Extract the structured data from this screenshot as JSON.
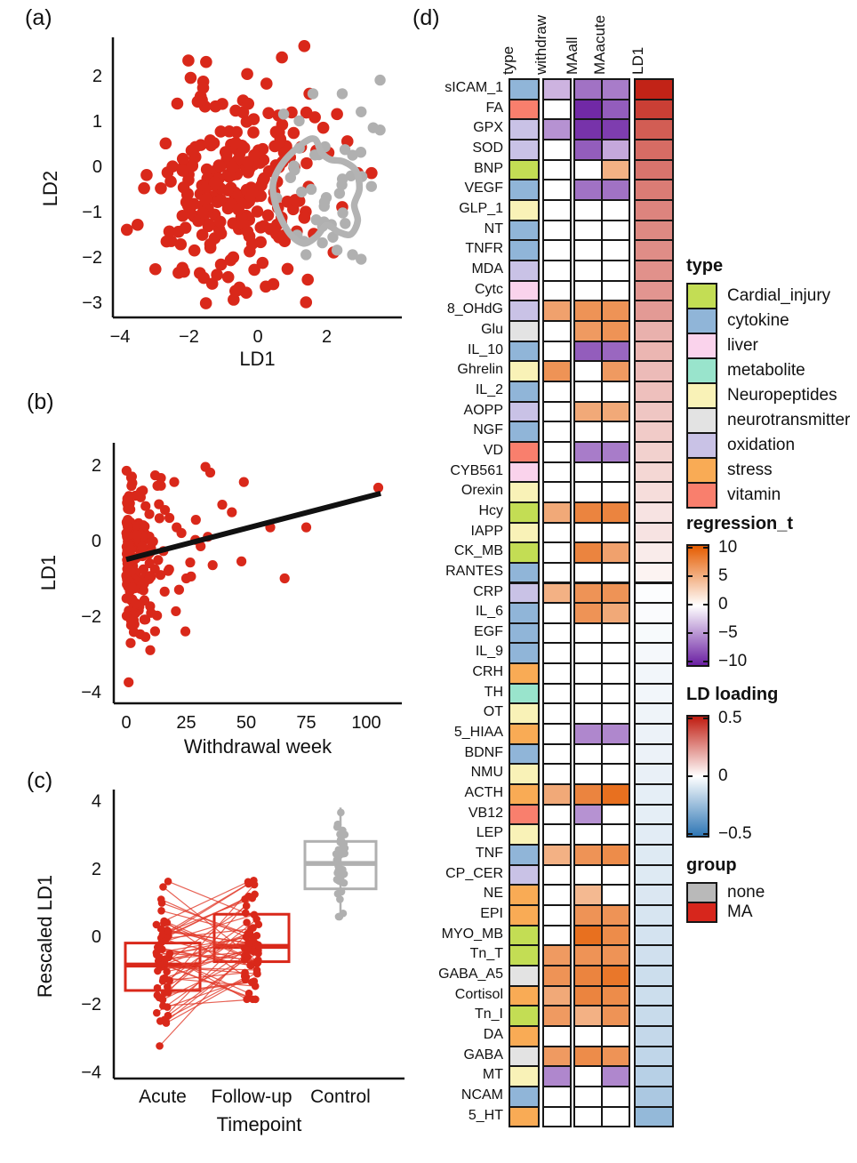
{
  "figure": {
    "panel_labels": {
      "a": "(a)",
      "b": "(b)",
      "c": "(c)",
      "d": "(d)"
    }
  },
  "chart_data": {
    "panel_a": {
      "type": "scatter",
      "xlabel": "LD1",
      "ylabel": "LD2",
      "xticks": [
        -4,
        -2,
        0,
        2
      ],
      "yticks": [
        2,
        1,
        0,
        -1,
        -2,
        -3
      ],
      "xlim": [
        -4.2,
        4.18
      ],
      "ylim": [
        -3.35,
        2.9
      ],
      "series": [
        {
          "name": "MA",
          "color": "#d9281a",
          "cluster": {
            "n": 235,
            "cx": -0.75,
            "cy": -0.4,
            "sx": 1.15,
            "sy": 1.05,
            "xmin": -3.9,
            "xmax": 2.05,
            "ymin": -3.05,
            "ymax": 2.7
          },
          "points": [
            [
              -3.8,
              -1.4
            ],
            [
              1.35,
              2.65
            ],
            [
              0.7,
              2.4
            ],
            [
              -1.5,
              2.3
            ],
            [
              -1.95,
              1.95
            ],
            [
              1.45,
              -2.5
            ],
            [
              1.4,
              -3.0
            ],
            [
              0.45,
              -2.6
            ],
            [
              -0.65,
              -2.75
            ],
            [
              -2.3,
              -2.35
            ],
            [
              2.3,
              1.15
            ],
            [
              2.9,
              -0.15
            ],
            [
              3.3,
              -0.15
            ],
            [
              2.6,
              0.55
            ],
            [
              1.9,
              0.85
            ],
            [
              2.2,
              -1.9
            ],
            [
              1.5,
              1.6
            ],
            [
              2.45,
              -0.9
            ],
            [
              2.05,
              0.3
            ]
          ]
        },
        {
          "name": "none",
          "color": "#b0b0b0",
          "cluster": {
            "n": 30,
            "cx": 2.1,
            "cy": -0.6,
            "sx": 0.7,
            "sy": 0.65,
            "xmin": 0.5,
            "xmax": 3.3,
            "ymin": -1.8,
            "ymax": 0.5
          },
          "points": [
            [
              3.55,
              1.9
            ],
            [
              2.45,
              1.6
            ],
            [
              1.6,
              1.6
            ],
            [
              3.0,
              1.2
            ],
            [
              3.35,
              0.85
            ],
            [
              3.55,
              0.8
            ],
            [
              0.75,
              1.15
            ],
            [
              1.2,
              1.0
            ],
            [
              2.75,
              -1.95
            ],
            [
              3.0,
              -2.05
            ],
            [
              2.3,
              -1.85
            ],
            [
              1.4,
              -1.95
            ],
            [
              0.95,
              -0.25
            ],
            [
              0.55,
              -0.7
            ]
          ]
        }
      ],
      "contour": {
        "color": "#b3b3b3",
        "points": [
          [
            0.45,
            -0.35
          ],
          [
            0.75,
            0.1
          ],
          [
            1.3,
            0.5
          ],
          [
            1.65,
            0.6
          ],
          [
            1.85,
            0.3
          ],
          [
            2.1,
            0.15
          ],
          [
            2.5,
            0.1
          ],
          [
            2.85,
            -0.1
          ],
          [
            2.95,
            -0.5
          ],
          [
            2.8,
            -0.85
          ],
          [
            2.9,
            -1.2
          ],
          [
            2.7,
            -1.5
          ],
          [
            2.35,
            -1.45
          ],
          [
            2.0,
            -1.3
          ],
          [
            1.7,
            -1.55
          ],
          [
            1.35,
            -1.7
          ],
          [
            1.0,
            -1.55
          ],
          [
            0.7,
            -1.2
          ],
          [
            0.5,
            -0.8
          ]
        ]
      }
    },
    "panel_b": {
      "type": "scatter",
      "xlabel": "Withdrawal week",
      "ylabel": "LD1",
      "xticks": [
        0,
        25,
        50,
        75,
        100
      ],
      "yticks": [
        2,
        0,
        -2,
        -4
      ],
      "xlim": [
        0,
        110
      ],
      "ylim": [
        -4.3,
        2.5
      ],
      "series": [
        {
          "name": "MA",
          "color": "#d9281a",
          "cluster": {
            "n": 175,
            "x_exp_scale": 5,
            "xmax": 36,
            "ycenter": -0.55,
            "ysd": 1.1,
            "ymin": -2.75,
            "ymax": 2.15
          },
          "points": [
            [
              1,
              -3.75
            ],
            [
              33,
              1.95
            ],
            [
              35,
              1.8
            ],
            [
              20,
              1.55
            ],
            [
              13,
              1.45
            ],
            [
              49,
              1.55
            ],
            [
              105,
              1.4
            ],
            [
              60,
              0.35
            ],
            [
              75,
              0.35
            ],
            [
              44,
              0.75
            ],
            [
              40,
              0.95
            ],
            [
              48,
              -0.55
            ],
            [
              66,
              -1.0
            ],
            [
              27,
              -0.95
            ],
            [
              31,
              -0.15
            ],
            [
              34,
              0.1
            ],
            [
              36,
              -0.65
            ],
            [
              22,
              -1.3
            ],
            [
              25,
              -1.0
            ],
            [
              16,
              -1.35
            ],
            [
              18,
              0.6
            ],
            [
              21,
              0.35
            ],
            [
              23,
              0.2
            ],
            [
              29,
              0.55
            ],
            [
              10,
              -2.9
            ],
            [
              12,
              -2.4
            ],
            [
              8,
              -2.55
            ]
          ]
        }
      ],
      "fit_line": {
        "color": "#111111",
        "from": [
          0,
          -0.5
        ],
        "to": [
          106,
          1.25
        ]
      }
    },
    "panel_c": {
      "type": "boxplot-paired",
      "xlabel": "Timepoint",
      "ylabel": "Rescaled LD1",
      "categories": [
        "Acute",
        "Follow-up",
        "Control"
      ],
      "yticks": [
        4,
        2,
        0,
        -2,
        -4
      ],
      "ylim": [
        -4.2,
        4.15
      ],
      "boxes": [
        {
          "category": "Acute",
          "color": "#d9281a",
          "min": -3.85,
          "q1": -1.6,
          "median": -0.85,
          "q3": -0.2,
          "max": 1.6
        },
        {
          "category": "Follow-up",
          "color": "#d9281a",
          "min": -1.85,
          "q1": -0.75,
          "median": -0.3,
          "q3": 0.65,
          "max": 1.7
        },
        {
          "category": "Control",
          "color": "#b0b0b0",
          "min": 0.6,
          "q1": 1.4,
          "median": 2.15,
          "q3": 2.8,
          "max": 3.8
        }
      ],
      "paired": {
        "n": 58,
        "acute_center": -0.9,
        "acute_sd": 1.15,
        "follow_sd": 0.82,
        "line_color": "#e23b2b"
      },
      "control": {
        "n": 40,
        "center": 2.15,
        "sd": 0.78
      }
    },
    "panel_d": {
      "type": "heatmap",
      "columns": [
        "type",
        "withdraw",
        "MAall",
        "MAacute",
        "LD1"
      ],
      "row_fields": [
        "name",
        "type",
        "withdraw",
        "MAall",
        "MAacute",
        "LD1"
      ],
      "rows": [
        [
          "sICAM_1",
          "cytokine",
          -3,
          -6,
          -5.5,
          0.48
        ],
        [
          "FA",
          "vitamin",
          0,
          -9.5,
          -7,
          0.4
        ],
        [
          "GPX",
          "oxidation",
          -4.5,
          -9,
          -8.5,
          0.32
        ],
        [
          "SOD",
          "oxidation",
          0,
          -7,
          -3.5,
          0.28
        ],
        [
          "BNP",
          "Cardial_injury",
          0,
          0,
          4,
          0.26
        ],
        [
          "VEGF",
          "cytokine",
          0,
          -6,
          -6,
          0.24
        ],
        [
          "GLP_1",
          "Neuropeptides",
          0,
          0,
          0,
          0.22
        ],
        [
          "NT",
          "cytokine",
          0,
          0,
          0,
          0.21
        ],
        [
          "TNFR",
          "cytokine",
          0,
          0,
          0,
          0.2
        ],
        [
          "MDA",
          "oxidation",
          0,
          0,
          0,
          0.19
        ],
        [
          "Cytc",
          "liver",
          0,
          0,
          0,
          0.18
        ],
        [
          "8_OHdG",
          "oxidation",
          5,
          6,
          6,
          0.17
        ],
        [
          "Glu",
          "neurotransmitter",
          0,
          5.5,
          6,
          0.12
        ],
        [
          "IL_10",
          "cytokine",
          0,
          -7,
          -6.5,
          0.11
        ],
        [
          "Ghrelin",
          "Neuropeptides",
          6,
          0,
          5.5,
          0.1
        ],
        [
          "IL_2",
          "cytokine",
          0,
          0,
          0,
          0.09
        ],
        [
          "AOPP",
          "oxidation",
          0,
          4.5,
          4.5,
          0.08
        ],
        [
          "NGF",
          "cytokine",
          0,
          0,
          0,
          0.07
        ],
        [
          "VD",
          "vitamin",
          0,
          -5.5,
          -5.5,
          0.06
        ],
        [
          "CYB561",
          "liver",
          0,
          0,
          0,
          0.05
        ],
        [
          "Orexin",
          "Neuropeptides",
          0,
          0,
          0,
          0.04
        ],
        [
          "Hcy",
          "Cardial_injury",
          4.5,
          7,
          7,
          0.03
        ],
        [
          "IAPP",
          "Neuropeptides",
          0,
          0,
          0,
          0.03
        ],
        [
          "CK_MB",
          "Cardial_injury",
          0,
          7,
          5,
          0.02
        ],
        [
          "RANTES",
          "cytokine",
          0,
          0,
          0,
          0.01
        ],
        [
          "CRP",
          "oxidation",
          4,
          6,
          6,
          -0.02
        ],
        [
          "IL_6",
          "cytokine",
          0,
          6,
          4.5,
          -0.03
        ],
        [
          "EGF",
          "cytokine",
          0,
          0,
          0,
          -0.04
        ],
        [
          "IL_9",
          "cytokine",
          0,
          0,
          0,
          -0.05
        ],
        [
          "CRH",
          "stress",
          0,
          0,
          0,
          -0.06
        ],
        [
          "TH",
          "metabolite",
          0,
          0,
          0,
          -0.06
        ],
        [
          "OT",
          "Neuropeptides",
          0,
          0,
          0,
          -0.07
        ],
        [
          "5_HIAA",
          "stress",
          0,
          -5,
          -5,
          -0.08
        ],
        [
          "BDNF",
          "cytokine",
          0,
          0,
          0,
          -0.08
        ],
        [
          "NMU",
          "Neuropeptides",
          0,
          0,
          0,
          -0.09
        ],
        [
          "ACTH",
          "stress",
          4.5,
          7,
          8.5,
          -0.1
        ],
        [
          "VB12",
          "vitamin",
          0,
          -4.5,
          0,
          -0.1
        ],
        [
          "LEP",
          "Neuropeptides",
          0,
          0,
          0,
          -0.11
        ],
        [
          "TNF",
          "cytokine",
          4,
          6,
          6.5,
          -0.12
        ],
        [
          "CP_CER",
          "oxidation",
          0,
          0,
          0,
          -0.12
        ],
        [
          "NE",
          "stress",
          0,
          3.5,
          0,
          -0.13
        ],
        [
          "EPI",
          "stress",
          0,
          6,
          6,
          -0.14
        ],
        [
          "MYO_MB",
          "Cardial_injury",
          0,
          8.5,
          6.5,
          -0.15
        ],
        [
          "Tn_T",
          "Cardial_injury",
          5.5,
          6,
          6,
          -0.16
        ],
        [
          "GABA_A5",
          "neurotransmitter",
          6,
          7,
          8,
          -0.17
        ],
        [
          "Cortisol",
          "stress",
          4.5,
          7,
          6.5,
          -0.17
        ],
        [
          "Tn_I",
          "Cardial_injury",
          5.5,
          4,
          6,
          -0.18
        ],
        [
          "DA",
          "stress",
          0,
          0,
          0,
          -0.19
        ],
        [
          "GABA",
          "neurotransmitter",
          5.5,
          6.5,
          6,
          -0.2
        ],
        [
          "MT",
          "Neuropeptides",
          -5,
          0,
          -5,
          -0.22
        ],
        [
          "NCAM",
          "cytokine",
          0,
          0,
          0,
          -0.25
        ],
        [
          "5_HT",
          "stress",
          0,
          0,
          0,
          -0.3
        ]
      ],
      "type_colors": {
        "Cardial_injury": "#c3dd54",
        "cytokine": "#90b5d8",
        "liver": "#fad3ec",
        "metabolite": "#99e4cc",
        "Neuropeptides": "#f9f2b7",
        "neurotransmitter": "#e3e3e3",
        "oxidation": "#c9c2e6",
        "stress": "#f9ab55",
        "vitamin": "#f97f6d"
      },
      "regression_t_scale": {
        "domain": [
          -10,
          10
        ],
        "negative_color": "#6a1fa2",
        "positive_color": "#e55c00",
        "zero_color": "#ffffff"
      },
      "ld_loading_scale": {
        "domain": [
          -0.5,
          0.5
        ],
        "negative_color": "#2f77b5",
        "positive_color": "#c01c10",
        "zero_color": "#ffffff"
      },
      "legends": {
        "type": {
          "title": "type",
          "items": [
            "Cardial_injury",
            "cytokine",
            "liver",
            "metabolite",
            "Neuropeptides",
            "neurotransmitter",
            "oxidation",
            "stress",
            "vitamin"
          ]
        },
        "regression_t": {
          "title": "regression_t",
          "ticks": [
            10,
            5,
            0,
            -5,
            -10
          ]
        },
        "ld_loading": {
          "title": "LD loading",
          "ticks": [
            0.5,
            0,
            -0.5
          ]
        },
        "group": {
          "title": "group",
          "items": [
            {
              "label": "none",
              "color": "#b9b9b9"
            },
            {
              "label": "MA",
              "color": "#d7261c"
            }
          ]
        }
      }
    }
  }
}
